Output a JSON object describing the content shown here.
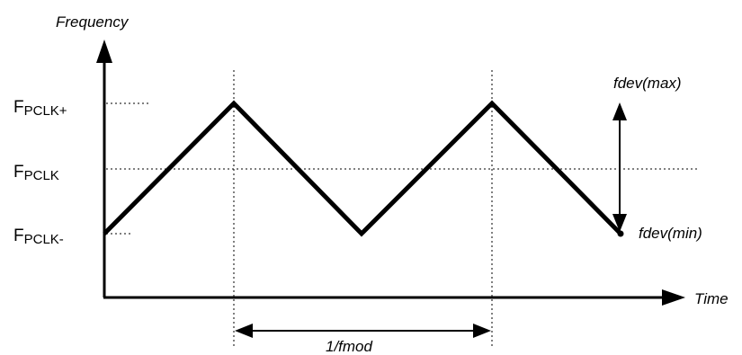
{
  "axes": {
    "y_label": "Frequency",
    "x_label": "Time"
  },
  "levels": {
    "plus": {
      "main": "F",
      "sub": "PCLK+"
    },
    "nominal": {
      "main": "F",
      "sub": "PCLK"
    },
    "minus": {
      "main": "F",
      "sub": "PCLK-"
    }
  },
  "annotations": {
    "dev_max": "fdev(max)",
    "dev_min": "fdev(min)",
    "period": "1/fmod"
  },
  "waveform": {
    "type": "triangle",
    "levels": [
      "minus",
      "plus",
      "minus",
      "plus",
      "minus"
    ]
  }
}
